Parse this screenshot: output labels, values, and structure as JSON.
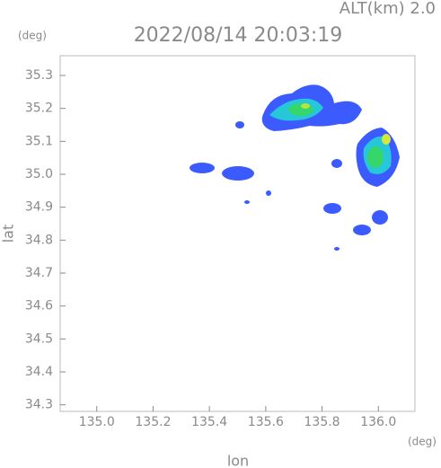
{
  "chart_data": {
    "type": "radar-map",
    "title": "2022/08/14 20:03:19",
    "altitude_label": "ALT(km)  2.0",
    "x_label": "lon",
    "x_unit": "(deg)",
    "y_label": "lat",
    "y_unit": "(deg)",
    "xlim": [
      134.87,
      136.13
    ],
    "xticks": [
      {
        "value": 135,
        "label": "135.0"
      },
      135.2,
      135.4,
      135.6,
      135.8,
      {
        "value": 136,
        "label": "136.0"
      }
    ],
    "ylim": [
      34.28,
      35.36
    ],
    "yticks": [
      34.3,
      34.4,
      34.5,
      34.6,
      34.7,
      34.8,
      34.9,
      {
        "value": 35,
        "label": "35.0"
      },
      35.1,
      35.2,
      35.3
    ],
    "color": "#8a8a8a"
  }
}
